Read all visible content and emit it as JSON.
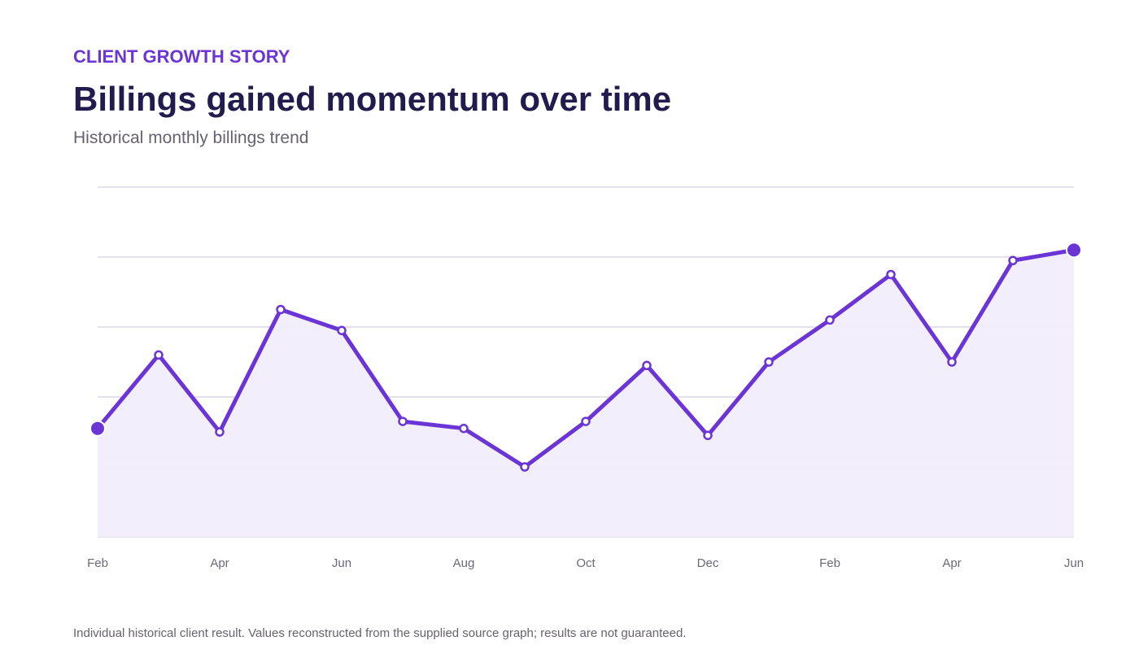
{
  "header": {
    "eyebrow": "CLIENT GROWTH STORY",
    "title": "Billings gained momentum over time",
    "subtitle": "Historical monthly billings trend"
  },
  "footnote": "Individual historical client result. Values reconstructed from the supplied source graph; results are not guaranteed.",
  "colors": {
    "line": "#6b35d6",
    "area": "#f2edfb",
    "grid": "#e5e0f0",
    "point_fill": "#ffffff"
  },
  "chart_data": {
    "type": "line",
    "title": "Billings gained momentum over time",
    "subtitle": "Historical monthly billings trend",
    "xlabel": "",
    "ylabel": "",
    "x_tick_labels": [
      "Feb",
      "Apr",
      "Jun",
      "Aug",
      "Oct",
      "Dec",
      "Feb",
      "Apr",
      "Jun"
    ],
    "series": [
      {
        "values": [
          31,
          52,
          30,
          65,
          59,
          33,
          31,
          20,
          33,
          49,
          29,
          50,
          62,
          75,
          50,
          79,
          82
        ]
      }
    ],
    "ylim": [
      0,
      100
    ],
    "y_grid_values": [
      0,
      20,
      40,
      60,
      80,
      100
    ],
    "y_tick_labels_shown": false,
    "grid": true,
    "area_fill": true,
    "legend": "none"
  }
}
